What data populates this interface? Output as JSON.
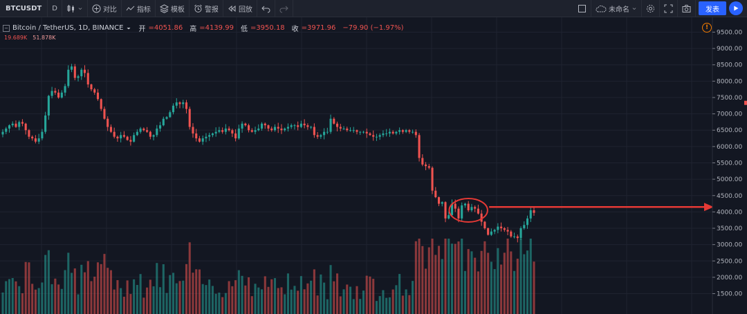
{
  "toolbar": {
    "symbol": "BTCUSDT",
    "interval": "D",
    "compare": "对比",
    "indicators": "指标",
    "templates": "模板",
    "alert": "警报",
    "replay": "回放",
    "unnamed": "未命名",
    "publish": "发表"
  },
  "legend": {
    "title": "Bitcoin / TetherUS, 1D, BINANCE",
    "open_label": "开",
    "open": "=4051.86",
    "high_label": "高",
    "high": "=4139.99",
    "low_label": "低",
    "low": "=3950.18",
    "close_label": "收",
    "close": "=3971.96",
    "change": "−79.90 (−1.97%)",
    "vol1": "19.689K",
    "vol2": "51.878K"
  },
  "colors": {
    "up": "#26a69a",
    "down": "#ef5350",
    "background": "#131722",
    "annotation": "#e53935"
  },
  "chart_data": {
    "type": "candlestick",
    "y_axis_ticks": [
      "9500.00",
      "9000.00",
      "8500.00",
      "8000.00",
      "7500.00",
      "7000.00",
      "6500.00",
      "6000.00",
      "5500.00",
      "5000.00",
      "4500.00",
      "4000.00",
      "3500.00",
      "3000.00",
      "2500.00",
      "2000.00",
      "1500.00"
    ],
    "ylim": [
      1300,
      9700
    ],
    "closes": [
      6450,
      6550,
      6650,
      6700,
      6600,
      6750,
      6700,
      6500,
      6300,
      6250,
      6150,
      6250,
      6450,
      6950,
      7550,
      7700,
      7650,
      7500,
      7650,
      7850,
      8350,
      8450,
      8100,
      8150,
      8350,
      8250,
      7900,
      7750,
      7650,
      7450,
      7150,
      6850,
      6600,
      6450,
      6300,
      6250,
      6350,
      6300,
      6200,
      6150,
      6350,
      6450,
      6550,
      6500,
      6450,
      6300,
      6350,
      6550,
      6650,
      6850,
      6900,
      7050,
      7250,
      7350,
      7300,
      7350,
      7150,
      6600,
      6400,
      6250,
      6150,
      6250,
      6300,
      6350,
      6400,
      6450,
      6500,
      6450,
      6550,
      6500,
      6400,
      6250,
      6550,
      6700,
      6650,
      6500,
      6450,
      6500,
      6550,
      6700,
      6650,
      6550,
      6500,
      6600,
      6550,
      6500,
      6550,
      6600,
      6650,
      6650,
      6600,
      6700,
      6650,
      6600,
      6600,
      6350,
      6300,
      6350,
      6450,
      6450,
      6850,
      6700,
      6600,
      6550,
      6550,
      6500,
      6500,
      6500,
      6450,
      6450,
      6450,
      6400,
      6350,
      6300,
      6300,
      6350,
      6400,
      6400,
      6450,
      6400,
      6450,
      6500,
      6450,
      6500,
      6450,
      6450,
      6350,
      5650,
      5450,
      5400,
      5350,
      4650,
      4450,
      4250,
      4300,
      3800,
      3900,
      4250,
      4100,
      3800,
      4200,
      4250,
      4050,
      4150,
      4100,
      3950,
      3700,
      3500,
      3300,
      3400,
      3450,
      3550,
      3500,
      3450,
      3400,
      3250,
      3250,
      3200,
      3500,
      3600,
      3800,
      4050,
      3972
    ],
    "volume_range": [
      0,
      3000
    ]
  },
  "annotation": {
    "shapes": [
      "ellipse",
      "horizontal-arrow"
    ],
    "arrow_price": 4150
  }
}
